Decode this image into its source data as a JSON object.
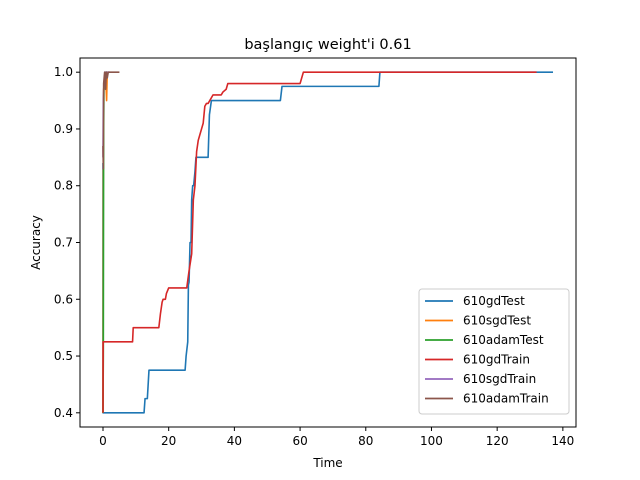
{
  "chart_data": {
    "type": "line",
    "title": "başlangıç weight'i 0.61",
    "xlabel": "Time",
    "ylabel": "Accuracy",
    "xlim": [
      -7,
      144
    ],
    "ylim": [
      0.375,
      1.025
    ],
    "xticks": [
      0,
      20,
      40,
      60,
      80,
      100,
      120,
      140
    ],
    "yticks": [
      0.4,
      0.5,
      0.6,
      0.7,
      0.8,
      0.9,
      1.0
    ],
    "xtick_labels": [
      "0",
      "20",
      "40",
      "60",
      "80",
      "100",
      "120",
      "140"
    ],
    "ytick_labels": [
      "0.4",
      "0.5",
      "0.6",
      "0.7",
      "0.8",
      "0.9",
      "1.0"
    ],
    "grid": false,
    "legend_position": "lower-right",
    "series": [
      {
        "name": "610gdTest",
        "color": "#1f77b4",
        "x": [
          0,
          0,
          12.5,
          12.8,
          13.5,
          14,
          25,
          25.3,
          25.8,
          26.0,
          26.2,
          26.5,
          26.8,
          27.0,
          27.3,
          27.6,
          28,
          28.3,
          28.6,
          29,
          32,
          32.4,
          33,
          54,
          54.5,
          84,
          84.3,
          137
        ],
        "y": [
          0.84,
          0.4,
          0.4,
          0.425,
          0.425,
          0.475,
          0.475,
          0.5,
          0.525,
          0.625,
          0.63,
          0.7,
          0.7,
          0.775,
          0.8,
          0.8,
          0.825,
          0.85,
          0.85,
          0.85,
          0.85,
          0.925,
          0.95,
          0.95,
          0.975,
          0.975,
          1.0,
          1.0
        ]
      },
      {
        "name": "610sgdTest",
        "color": "#ff7f0e",
        "x": [
          0,
          0.1,
          0.2,
          0.35,
          0.5,
          0.7,
          0.9,
          1.1,
          1.3,
          1.5
        ],
        "y": [
          0.4,
          0.9,
          0.97,
          0.98,
          0.99,
          0.97,
          0.98,
          0.95,
          1.0,
          1.0
        ]
      },
      {
        "name": "610adamTest",
        "color": "#2ca02c",
        "x": [
          0,
          0.05,
          0.1,
          0.2,
          0.3,
          0.5,
          0.8,
          1.2
        ],
        "y": [
          0.4,
          0.45,
          0.5,
          0.9,
          0.97,
          0.99,
          1.0,
          1.0
        ]
      },
      {
        "name": "610gdTrain",
        "color": "#d62728",
        "x": [
          0,
          0.05,
          9,
          9.2,
          17,
          17.5,
          18,
          18.3,
          19,
          19.3,
          20,
          20.3,
          25.5,
          26.2,
          27,
          27.5,
          28,
          28.5,
          29,
          29.5,
          30,
          30.5,
          31,
          31.5,
          32,
          33,
          33.5,
          36,
          36.5,
          37.5,
          38,
          40,
          60,
          60.5,
          61,
          132
        ],
        "y": [
          0.4,
          0.525,
          0.525,
          0.55,
          0.55,
          0.575,
          0.595,
          0.6,
          0.6,
          0.61,
          0.62,
          0.62,
          0.62,
          0.65,
          0.68,
          0.775,
          0.8,
          0.86,
          0.88,
          0.89,
          0.9,
          0.91,
          0.94,
          0.945,
          0.945,
          0.955,
          0.96,
          0.96,
          0.965,
          0.97,
          0.98,
          0.98,
          0.98,
          0.99,
          1.0,
          1.0
        ]
      },
      {
        "name": "610sgdTrain",
        "color": "#9467bd",
        "x": [
          0,
          0.1,
          0.3,
          0.6,
          1.0,
          2.0
        ],
        "y": [
          0.85,
          0.95,
          0.98,
          1.0,
          1.0,
          1.0
        ]
      },
      {
        "name": "610adamTrain",
        "color": "#8c564b",
        "x": [
          0,
          0.1,
          0.2,
          0.35,
          0.5,
          0.8,
          1.0,
          1.3,
          1.6,
          2.0,
          3.0,
          5.0
        ],
        "y": [
          0.87,
          0.83,
          0.98,
          0.99,
          1.0,
          0.97,
          1.0,
          0.99,
          1.0,
          1.0,
          1.0,
          1.0
        ]
      }
    ]
  }
}
